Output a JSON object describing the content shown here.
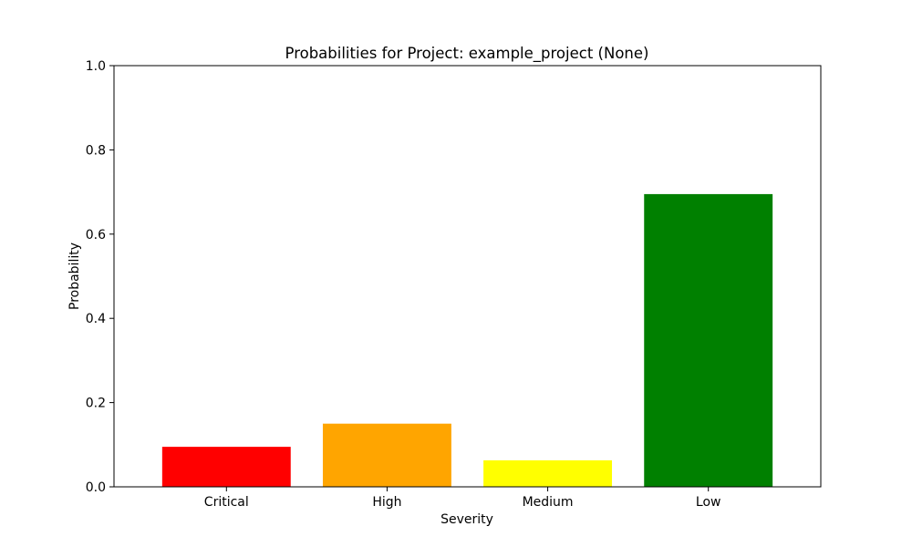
{
  "chart_data": {
    "type": "bar",
    "title": "Probabilities for Project: example_project (None)",
    "xlabel": "Severity",
    "ylabel": "Probability",
    "categories": [
      "Critical",
      "High",
      "Medium",
      "Low"
    ],
    "values": [
      0.095,
      0.15,
      0.063,
      0.695
    ],
    "colors": [
      "#ff0000",
      "#ffa500",
      "#ffff00",
      "#008000"
    ],
    "ylim": [
      0,
      1.0
    ],
    "yticks": [
      "0.0",
      "0.2",
      "0.4",
      "0.6",
      "0.8",
      "1.0"
    ],
    "grid": false,
    "legend": "none"
  }
}
